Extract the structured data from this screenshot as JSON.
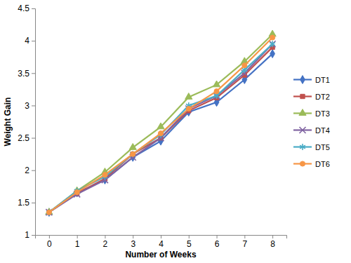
{
  "chart_data": {
    "type": "line",
    "x_label": "Number of Weeks",
    "y_label": "Weight Gain",
    "categories": [
      "0",
      "1",
      "2",
      "3",
      "4",
      "5",
      "6",
      "7",
      "8"
    ],
    "ylim": [
      1,
      4.5
    ],
    "yticks": [
      1,
      1.5,
      2,
      2.5,
      3,
      3.5,
      4,
      4.5
    ],
    "grid": false,
    "legend": "right",
    "series": [
      {
        "name": "DT1",
        "color": "#4472c4",
        "marker": "diamond",
        "values": [
          1.35,
          1.65,
          1.85,
          2.2,
          2.45,
          2.9,
          3.05,
          3.4,
          3.8
        ]
      },
      {
        "name": "DT2",
        "color": "#c0504d",
        "marker": "square",
        "values": [
          1.35,
          1.64,
          1.87,
          2.25,
          2.5,
          2.92,
          3.12,
          3.47,
          3.9
        ]
      },
      {
        "name": "DT3",
        "color": "#9bbb59",
        "marker": "triangle",
        "values": [
          1.35,
          1.68,
          1.97,
          2.35,
          2.67,
          3.13,
          3.32,
          3.68,
          4.1
        ]
      },
      {
        "name": "DT4",
        "color": "#8064a2",
        "marker": "x",
        "values": [
          1.35,
          1.63,
          1.85,
          2.2,
          2.5,
          2.95,
          3.15,
          3.5,
          3.95
        ]
      },
      {
        "name": "DT5",
        "color": "#4bacc6",
        "marker": "star",
        "values": [
          1.35,
          1.68,
          1.9,
          2.25,
          2.55,
          3.0,
          3.15,
          3.55,
          3.95
        ]
      },
      {
        "name": "DT6",
        "color": "#f79646",
        "marker": "circle",
        "values": [
          1.35,
          1.66,
          1.93,
          2.25,
          2.57,
          2.95,
          3.22,
          3.62,
          4.05
        ]
      }
    ]
  }
}
